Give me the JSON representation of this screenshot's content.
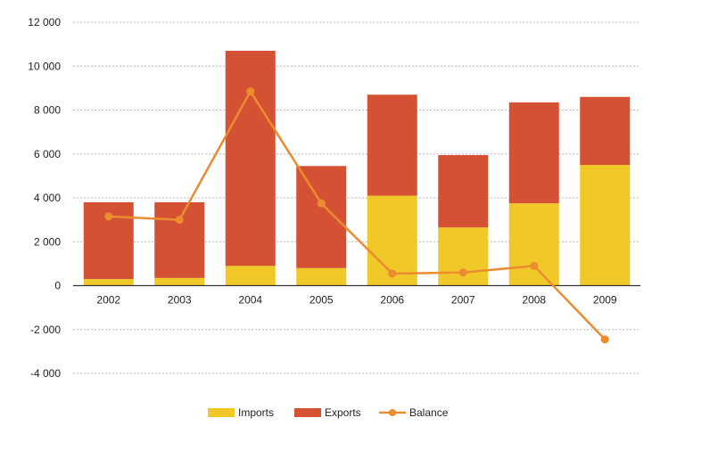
{
  "chart_data": {
    "type": "bar",
    "stacked": true,
    "categories": [
      "2002",
      "2003",
      "2004",
      "2005",
      "2006",
      "2007",
      "2008",
      "2009"
    ],
    "series": [
      {
        "name": "Imports",
        "type": "bar",
        "color": "#f0c928",
        "values": [
          300,
          350,
          900,
          800,
          4100,
          2650,
          3750,
          5500
        ]
      },
      {
        "name": "Exports",
        "type": "bar",
        "color": "#d45233",
        "values": [
          3500,
          3450,
          9800,
          4650,
          4600,
          3300,
          4600,
          3100
        ]
      },
      {
        "name": "Balance",
        "type": "line",
        "color": "#eb8c2e",
        "values": [
          3150,
          3000,
          8850,
          3750,
          550,
          600,
          900,
          -2450
        ]
      }
    ],
    "yticks": [
      "12 000",
      "10 000",
      "8 000",
      "6 000",
      "4 000",
      "2 000",
      "0",
      "-2 000",
      "-4 000"
    ],
    "ylim": [
      -4000,
      12000
    ],
    "grid": true,
    "legend": "bottom-center"
  }
}
